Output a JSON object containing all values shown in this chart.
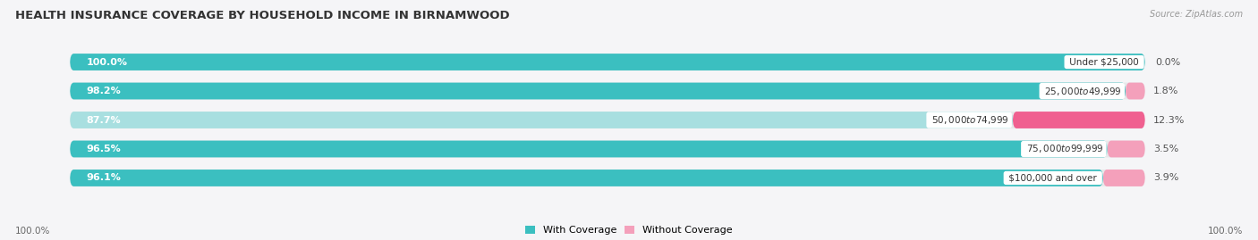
{
  "title": "HEALTH INSURANCE COVERAGE BY HOUSEHOLD INCOME IN BIRNAMWOOD",
  "source": "Source: ZipAtlas.com",
  "categories": [
    "Under $25,000",
    "$25,000 to $49,999",
    "$50,000 to $74,999",
    "$75,000 to $99,999",
    "$100,000 and over"
  ],
  "with_coverage": [
    100.0,
    98.2,
    87.7,
    96.5,
    96.1
  ],
  "without_coverage": [
    0.0,
    1.8,
    12.3,
    3.5,
    3.9
  ],
  "color_with": "#3bbfc0",
  "color_with_light": "#a8dfe0",
  "color_without_row2": "#f4a0bb",
  "color_without_row3": "#f06090",
  "color_without_row4": "#f4a0bb",
  "color_without_row5": "#f4a0bb",
  "color_without": "#f4a0bb",
  "bar_bg": "#e8e8ea",
  "bg_color": "#f5f5f7",
  "bar_height": 0.58,
  "title_fontsize": 9.5,
  "label_fontsize": 8,
  "source_fontsize": 7,
  "tick_fontsize": 7.5,
  "without_colors": [
    "#f4a0bb",
    "#f4a0bb",
    "#f06090",
    "#f4a0bb",
    "#f4a0bb"
  ],
  "with_colors": [
    "#3bbfc0",
    "#3bbfc0",
    "#a8dfe0",
    "#3bbfc0",
    "#3bbfc0"
  ]
}
